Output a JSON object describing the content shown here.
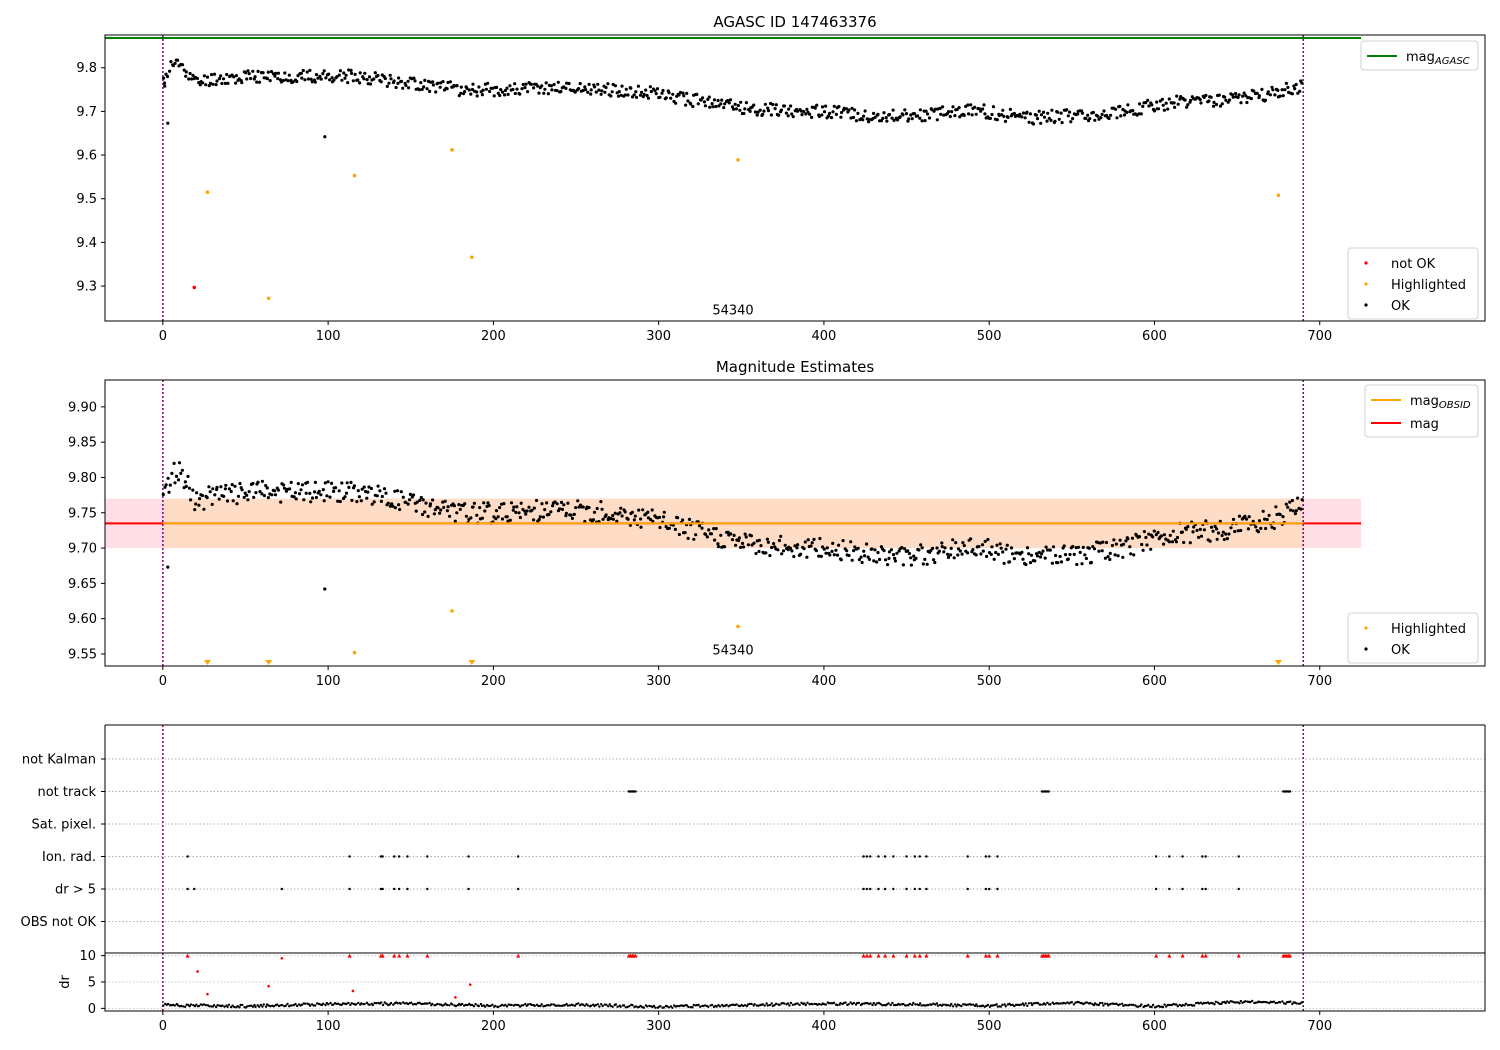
{
  "chart_data": [
    {
      "type": "scatter",
      "title": "AGASC ID 147463376",
      "xlim": [
        -35,
        800
      ],
      "ylim": [
        9.22,
        9.875
      ],
      "xticks": [
        0,
        100,
        200,
        300,
        400,
        500,
        600,
        700
      ],
      "yticks": [
        9.3,
        9.4,
        9.5,
        9.6,
        9.7,
        9.8
      ],
      "ytick_labels": [
        "9.3",
        "9.4",
        "9.5",
        "9.6",
        "9.7",
        "9.8"
      ],
      "vlines": [
        0,
        690
      ],
      "annotation": {
        "x": 345,
        "y": 9.24,
        "text": "54340"
      },
      "hline": {
        "name": "mag_AGASC",
        "y": 9.868,
        "x": [
          -35,
          725
        ],
        "color": "#008000"
      },
      "legend_lines": [
        {
          "prefix": "mag",
          "sub": "AGASC",
          "color": "#008000"
        }
      ],
      "legend_points": [
        {
          "name": "not OK",
          "color": "#ff0000"
        },
        {
          "name": "Highlighted",
          "color": "#ffa500"
        },
        {
          "name": "OK",
          "color": "#000000"
        }
      ],
      "series": [
        {
          "name": "not OK",
          "color": "#ff0000",
          "x": [
            19
          ],
          "y": [
            9.297
          ]
        },
        {
          "name": "Highlighted",
          "color": "#ffa500",
          "x": [
            27,
            64,
            116,
            175,
            187,
            348,
            675
          ],
          "y": [
            9.515,
            9.272,
            9.553,
            9.612,
            9.366,
            9.589,
            9.508
          ]
        },
        {
          "name": "OK",
          "color": "#000000",
          "x": [
            1,
            3,
            98
          ],
          "y": [
            9.765,
            9.673,
            9.642
          ],
          "trend_x": [
            0,
            5,
            10,
            15,
            20,
            30,
            60,
            90,
            120,
            150,
            180,
            210,
            240,
            270,
            300,
            330,
            360,
            400,
            430,
            460,
            490,
            520,
            550,
            580,
            610,
            640,
            670,
            690
          ],
          "trend_y": [
            9.76,
            9.805,
            9.81,
            9.79,
            9.765,
            9.775,
            9.78,
            9.78,
            9.78,
            9.765,
            9.75,
            9.75,
            9.755,
            9.75,
            9.74,
            9.72,
            9.705,
            9.7,
            9.69,
            9.69,
            9.705,
            9.685,
            9.69,
            9.7,
            9.72,
            9.725,
            9.74,
            9.76
          ]
        }
      ]
    },
    {
      "type": "scatter",
      "title": "Magnitude Estimates",
      "xlim": [
        -35,
        800
      ],
      "ylim": [
        9.533,
        9.938
      ],
      "xticks": [
        0,
        100,
        200,
        300,
        400,
        500,
        600,
        700
      ],
      "yticks": [
        9.55,
        9.6,
        9.65,
        9.7,
        9.75,
        9.8,
        9.85,
        9.9
      ],
      "ytick_labels": [
        "9.55",
        "9.60",
        "9.65",
        "9.70",
        "9.75",
        "9.80",
        "9.85",
        "9.90"
      ],
      "vlines": [
        0,
        690
      ],
      "annotation": {
        "x": 345,
        "y": 9.545,
        "text": "54340"
      },
      "bands": [
        {
          "name": "mag band",
          "y": [
            9.7,
            9.77
          ],
          "x": [
            -35,
            725
          ],
          "color": "#ffc0cb"
        },
        {
          "name": "mag_OBSID band",
          "y": [
            9.7,
            9.77
          ],
          "x": [
            0,
            690
          ],
          "color": "#ffdab9"
        }
      ],
      "hlines": [
        {
          "name": "mag",
          "y": 9.735,
          "x": [
            -35,
            725
          ],
          "color": "#ff0000"
        },
        {
          "name": "mag_OBSID",
          "y": 9.735,
          "x": [
            0,
            690
          ],
          "color": "#ffa500"
        }
      ],
      "legend_lines": [
        {
          "prefix": "mag",
          "sub": "OBSID",
          "color": "#ffa500"
        },
        {
          "prefix": "mag",
          "sub": "",
          "color": "#ff0000"
        }
      ],
      "legend_points": [
        {
          "name": "Highlighted",
          "color": "#ffa500"
        },
        {
          "name": "OK",
          "color": "#000000"
        }
      ],
      "series": [
        {
          "name": "Highlighted",
          "color": "#ffa500",
          "x": [
            116,
            175,
            348
          ],
          "y": [
            9.552,
            9.611,
            9.589
          ]
        },
        {
          "name": "Highlighted (below range)",
          "color": "#ffa500",
          "marker": "triangle-down",
          "x": [
            27,
            64,
            187,
            675
          ],
          "y": [
            9.533,
            9.533,
            9.533,
            9.533
          ]
        },
        {
          "name": "OK",
          "color": "#000000",
          "x": [
            3,
            98
          ],
          "y": [
            9.673,
            9.642
          ],
          "trend_x": [
            0,
            5,
            10,
            15,
            20,
            30,
            60,
            90,
            120,
            150,
            180,
            210,
            240,
            270,
            300,
            330,
            360,
            400,
            430,
            460,
            490,
            520,
            550,
            580,
            610,
            640,
            670,
            690
          ],
          "trend_y": [
            9.76,
            9.805,
            9.81,
            9.79,
            9.765,
            9.775,
            9.78,
            9.78,
            9.78,
            9.765,
            9.75,
            9.75,
            9.755,
            9.75,
            9.74,
            9.72,
            9.705,
            9.7,
            9.69,
            9.69,
            9.705,
            9.685,
            9.69,
            9.7,
            9.72,
            9.725,
            9.74,
            9.76
          ]
        }
      ]
    },
    {
      "type": "scatter",
      "title": "",
      "xlim": [
        -35,
        800
      ],
      "vlines": [
        0,
        690
      ],
      "categories": [
        "not Kalman",
        "not track",
        "Sat. pixel.",
        "Ion. rad.",
        "dr > 5",
        "OBS not OK"
      ],
      "flags": {
        "not Kalman": [],
        "not track": [
          282,
          283,
          284,
          285,
          286,
          532,
          533,
          534,
          535,
          536,
          678,
          679,
          680,
          681,
          682
        ],
        "Sat. pixel.": [],
        "Ion. rad.": [
          15,
          113,
          132,
          133,
          140,
          143,
          148,
          160,
          185,
          215,
          424,
          426,
          428,
          433,
          437,
          442,
          450,
          455,
          458,
          462,
          487,
          498,
          500,
          505,
          601,
          609,
          617,
          629,
          631,
          651
        ],
        "dr > 5": [
          15,
          19,
          72,
          113,
          132,
          133,
          140,
          143,
          148,
          160,
          185,
          215,
          424,
          426,
          428,
          433,
          437,
          442,
          450,
          455,
          458,
          462,
          487,
          498,
          500,
          505,
          601,
          609,
          617,
          629,
          631,
          651
        ],
        "OBS not OK": []
      },
      "dr_subplot": {
        "ylabel": "dr",
        "ylim": [
          -0.5,
          10.5
        ],
        "yticks": [
          0,
          5,
          10
        ],
        "ytick_labels": [
          "0",
          "5",
          "10"
        ],
        "high_x": [
          15,
          113,
          132,
          133,
          140,
          143,
          148,
          160,
          215,
          282,
          283,
          284,
          285,
          286,
          424,
          426,
          428,
          433,
          437,
          442,
          450,
          455,
          458,
          462,
          487,
          498,
          500,
          505,
          532,
          533,
          534,
          535,
          536,
          601,
          609,
          617,
          629,
          631,
          651,
          678,
          679,
          680,
          681,
          682
        ],
        "high_y": 10,
        "mid_points": {
          "x": [
            21,
            27,
            64,
            72,
            115,
            177,
            186
          ],
          "y": [
            7.0,
            2.7,
            4.2,
            9.5,
            3.3,
            2.1,
            4.5
          ]
        },
        "baseline_x": [
          0,
          50,
          100,
          150,
          200,
          250,
          300,
          350,
          400,
          450,
          500,
          550,
          600,
          650,
          690
        ],
        "baseline_y": [
          0.6,
          0.4,
          0.8,
          0.9,
          0.5,
          0.7,
          0.3,
          0.6,
          0.9,
          0.8,
          0.5,
          1.0,
          0.4,
          1.2,
          1.0
        ]
      },
      "xticks": [
        0,
        100,
        200,
        300,
        400,
        500,
        600,
        700
      ]
    }
  ]
}
